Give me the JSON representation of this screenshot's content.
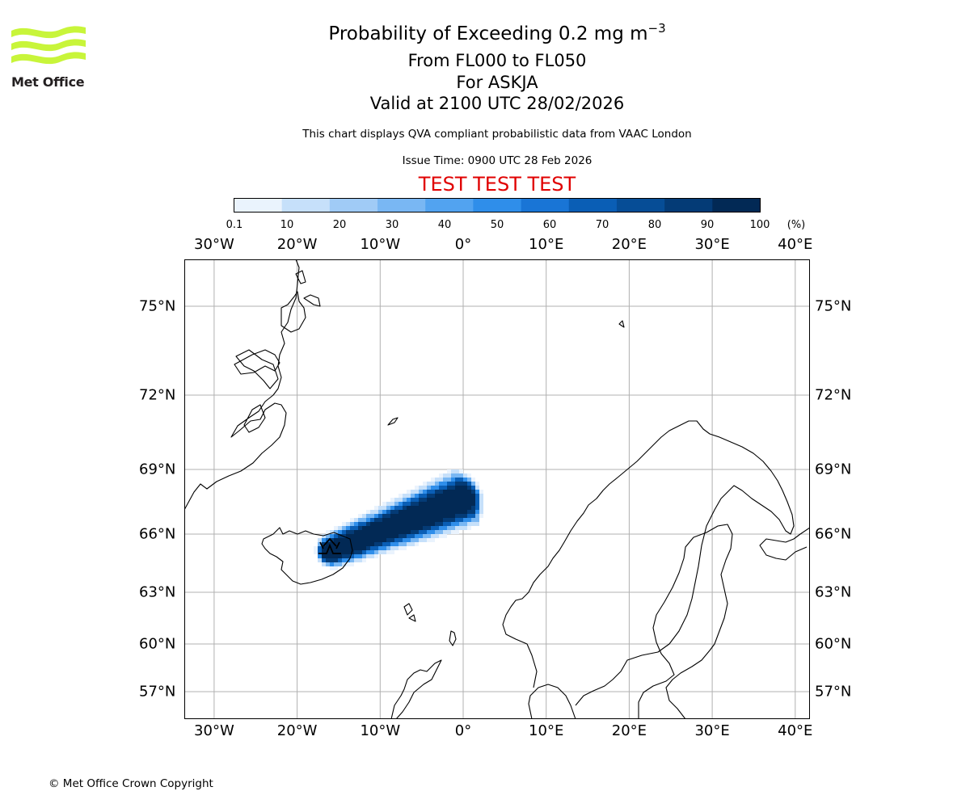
{
  "title": {
    "line1_main": "Probability of Exceeding 0.2 mg m",
    "line1_exponent": "−3",
    "line2": "From FL000 to FL050",
    "line3": "For ASKJA",
    "line4": "Valid at 2100 UTC 28/02/2026"
  },
  "subtitle": "This chart displays QVA compliant probabilistic data from VAAC London",
  "issue_time": "Issue Time: 0900 UTC 28 Feb 2026",
  "test_banner": "TEST TEST TEST",
  "logo_text": "Met Office",
  "copyright": "© Met Office Crown Copyright",
  "colorbar": {
    "labels": [
      "0.1",
      "10",
      "20",
      "30",
      "40",
      "50",
      "60",
      "70",
      "80",
      "90",
      "100"
    ],
    "unit": "(%)",
    "colors": [
      "#eaf3fd",
      "#c6e0fa",
      "#a0cbf6",
      "#79b7f3",
      "#52a3f0",
      "#2f8eea",
      "#1975d6",
      "#0a5eb5",
      "#064d96",
      "#043b76",
      "#022955"
    ]
  },
  "map": {
    "lon_labels": [
      {
        "lon": -30,
        "text": "30°W"
      },
      {
        "lon": -20,
        "text": "20°W"
      },
      {
        "lon": -10,
        "text": "10°W"
      },
      {
        "lon": 0,
        "text": "0°"
      },
      {
        "lon": 10,
        "text": "10°E"
      },
      {
        "lon": 20,
        "text": "20°E"
      },
      {
        "lon": 30,
        "text": "30°E"
      },
      {
        "lon": 40,
        "text": "40°E"
      }
    ],
    "lat_labels": [
      {
        "lat": 75,
        "text": "75°N"
      },
      {
        "lat": 72,
        "text": "72°N"
      },
      {
        "lat": 69,
        "text": "69°N"
      },
      {
        "lat": 66,
        "text": "66°N"
      },
      {
        "lat": 63,
        "text": "63°N"
      },
      {
        "lat": 60,
        "text": "60°N"
      },
      {
        "lat": 57,
        "text": "57°N"
      }
    ],
    "volcano": "ASKJA",
    "gridlines": true
  }
}
